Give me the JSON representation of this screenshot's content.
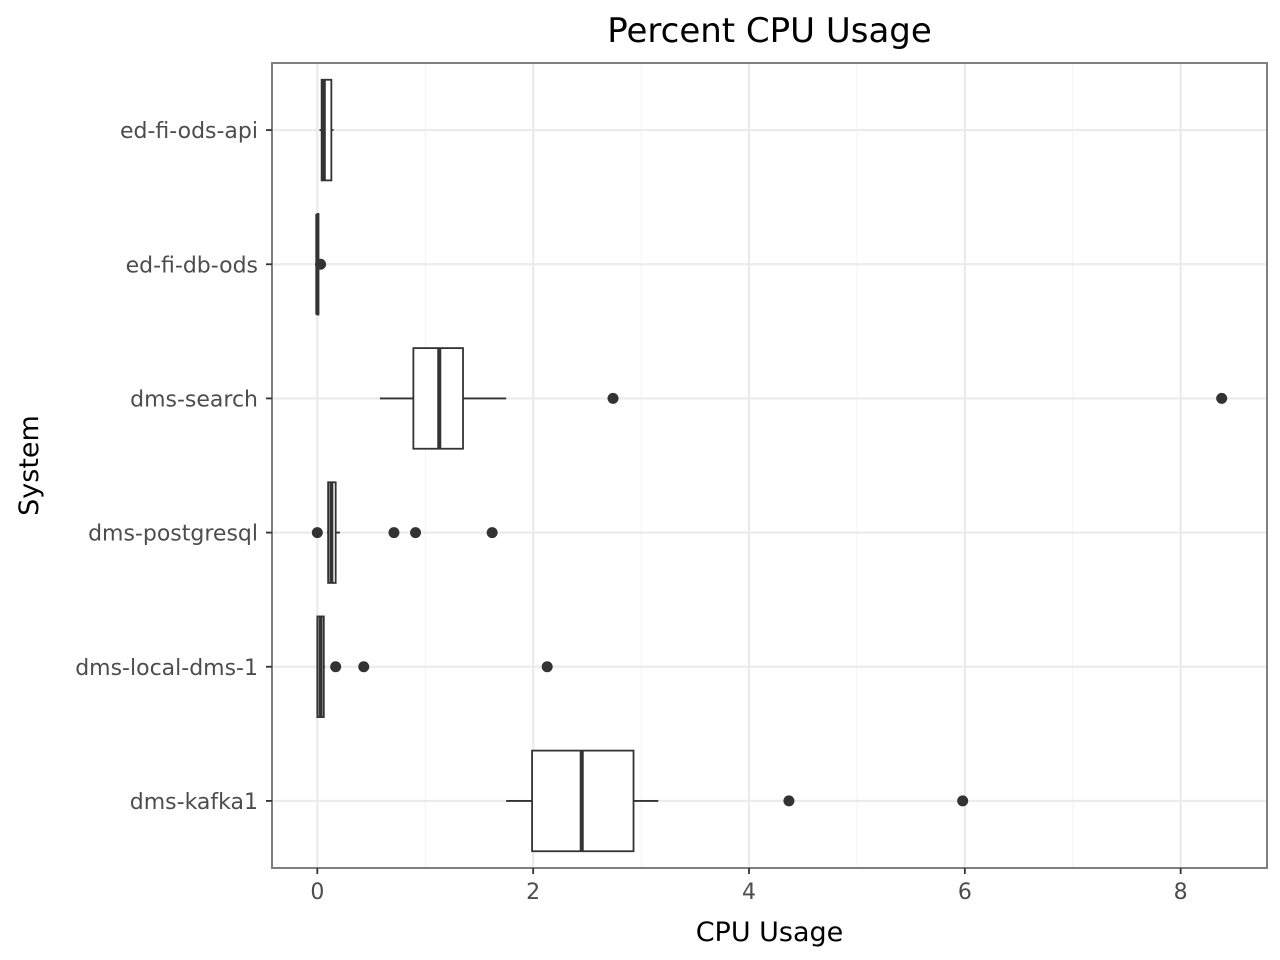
{
  "chart_data": {
    "type": "boxplot",
    "orientation": "horizontal",
    "title": "Percent CPU Usage",
    "xlabel": "CPU Usage",
    "ylabel": "System",
    "xlim": [
      -0.42,
      8.8
    ],
    "x_ticks": [
      0,
      2,
      4,
      6,
      8
    ],
    "x_tick_labels": [
      "0",
      "2",
      "4",
      "6",
      "8"
    ],
    "grid": true,
    "theme": "bw",
    "categories": [
      "ed-fi-ods-api",
      "ed-fi-db-ods",
      "dms-search",
      "dms-postgresql",
      "dms-local-dms-1",
      "dms-kafka1"
    ],
    "boxes": [
      {
        "category": "ed-fi-ods-api",
        "whisker_low": 0.02,
        "q1": 0.04,
        "median": 0.06,
        "q3": 0.13,
        "whisker_high": 0.15,
        "outliers": []
      },
      {
        "category": "ed-fi-db-ods",
        "whisker_low": 0.0,
        "q1": 0.0,
        "median": 0.0,
        "q3": 0.01,
        "whisker_high": 0.01,
        "outliers": [
          0.03
        ]
      },
      {
        "category": "dms-search",
        "whisker_low": 0.58,
        "q1": 0.89,
        "median": 1.13,
        "q3": 1.35,
        "whisker_high": 1.75,
        "outliers": [
          2.74,
          8.38
        ]
      },
      {
        "category": "dms-postgresql",
        "whisker_low": 0.09,
        "q1": 0.1,
        "median": 0.13,
        "q3": 0.17,
        "whisker_high": 0.21,
        "outliers": [
          0.0,
          0.71,
          0.91,
          1.62
        ]
      },
      {
        "category": "dms-local-dms-1",
        "whisker_low": 0.0,
        "q1": 0.0,
        "median": 0.03,
        "q3": 0.06,
        "whisker_high": 0.07,
        "outliers": [
          0.17,
          0.43,
          2.13
        ]
      },
      {
        "category": "dms-kafka1",
        "whisker_low": 1.75,
        "q1": 1.99,
        "median": 2.45,
        "q3": 2.93,
        "whisker_high": 3.16,
        "outliers": [
          4.37,
          5.98
        ]
      }
    ],
    "colors": {
      "box_stroke": "#333333",
      "box_fill": "#ffffff",
      "outlier": "#333333",
      "grid_major": "#ebebeb",
      "grid_minor": "#f5f5f5",
      "panel_border": "#7f7f7f",
      "tick_text": "#4d4d4d"
    }
  }
}
